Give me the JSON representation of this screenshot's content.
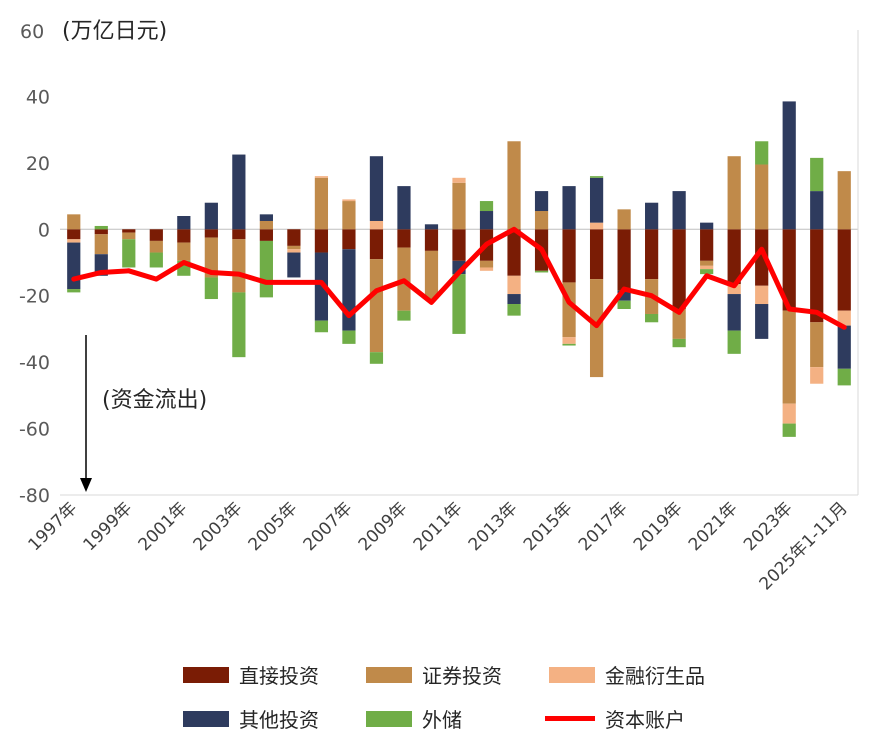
{
  "chart_data": {
    "type": "bar",
    "stacked": true,
    "unit_label": "(万亿日元)",
    "annotation": "(资金流出)",
    "ylim": [
      -80,
      60
    ],
    "yticks": [
      60,
      40,
      20,
      0,
      -20,
      -40,
      -60,
      -80
    ],
    "categories": [
      "1997年",
      "1998年",
      "1999年",
      "2000年",
      "2001年",
      "2002年",
      "2003年",
      "2004年",
      "2005年",
      "2006年",
      "2007年",
      "2008年",
      "2009年",
      "2010年",
      "2011年",
      "2012年",
      "2013年",
      "2014年",
      "2015年",
      "2016年",
      "2017年",
      "2018年",
      "2019年",
      "2020年",
      "2021年",
      "2022年",
      "2023年",
      "2024年",
      "2025年1-11月"
    ],
    "x_tick_labels": [
      "1997年",
      "1999年",
      "2001年",
      "2003年",
      "2005年",
      "2007年",
      "2009年",
      "2011年",
      "2013年",
      "2015年",
      "2017年",
      "2019年",
      "2021年",
      "2023年",
      "2025年1-11月"
    ],
    "series": [
      {
        "name": "直接投资",
        "color": "#7a1c05",
        "values": [
          -3,
          -1.5,
          -1,
          -3.5,
          -4,
          -2.5,
          -3,
          -3.5,
          -5,
          -7,
          -6,
          -9,
          -5.5,
          -6.5,
          -9.5,
          -9.5,
          -14,
          -12.5,
          -16,
          -15,
          -18.5,
          -15,
          -24,
          -9.5,
          -16.5,
          -17,
          -24.5,
          -28,
          -24.5
        ]
      },
      {
        "name": "证券投资",
        "color": "#c08a4a",
        "values": [
          4.5,
          -6,
          -2,
          -3.5,
          -5.5,
          -12,
          -16,
          2.5,
          -1,
          15.5,
          8.5,
          -28,
          -19,
          -14.5,
          14,
          -2,
          26.5,
          5.5,
          -16.5,
          -29.5,
          6,
          -10.5,
          -9,
          -1.5,
          22,
          19.5,
          -28,
          -13.5,
          17.5
        ]
      },
      {
        "name": "金融衍生品",
        "color": "#f4b183",
        "values": [
          -1,
          0,
          0,
          0,
          0,
          0,
          0,
          0,
          -1,
          0.5,
          0.5,
          2.5,
          0,
          0,
          1.5,
          -1,
          -5.5,
          0,
          -2,
          2,
          0,
          0,
          0,
          -1,
          -3,
          -5.5,
          -6,
          -5,
          -4.5
        ]
      },
      {
        "name": "其他投资",
        "color": "#2e3b5e",
        "values": [
          -14,
          -6.5,
          0,
          0,
          4,
          8,
          22.5,
          2,
          -7.5,
          -20.5,
          -24.5,
          19.5,
          13,
          1.5,
          -4,
          5.5,
          -3,
          6,
          13,
          13.5,
          -3,
          8,
          11.5,
          2,
          -11,
          -10.5,
          38.5,
          11.5,
          -13
        ]
      },
      {
        "name": "外储",
        "color": "#70ad47",
        "values": [
          -1,
          1,
          -8.5,
          -4.5,
          -4.5,
          -6.5,
          -19.5,
          -17,
          0,
          -3.5,
          -4,
          -3.5,
          -3,
          0,
          -18,
          3,
          -3.5,
          -0.5,
          -0.5,
          0.5,
          -2.5,
          -2.5,
          -2.5,
          -1.5,
          -7,
          7,
          -4,
          10,
          -5
        ]
      }
    ],
    "line": {
      "name": "资本账户",
      "color": "#ff0000",
      "values": [
        -15,
        -13,
        -12.5,
        -15,
        -10,
        -13,
        -13.5,
        -16,
        -16,
        -16,
        -26,
        -18.5,
        -15.5,
        -22,
        -13,
        -4.5,
        0,
        -6,
        -22,
        -29,
        -18,
        -20,
        -25,
        -14,
        -17,
        -6,
        -24,
        -25,
        -29.5
      ]
    },
    "legend": {
      "position": "bottom"
    },
    "grid": false
  }
}
